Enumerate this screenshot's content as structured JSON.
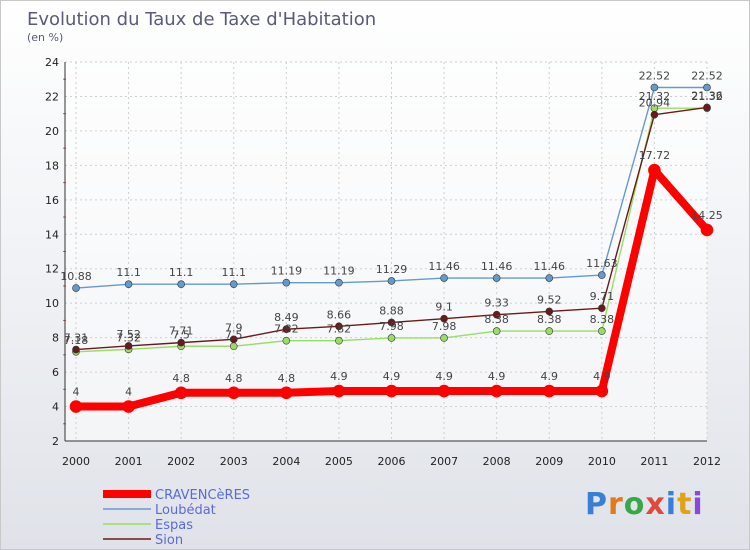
{
  "chart_data": {
    "type": "line",
    "title": "Evolution du Taux de Taxe d'Habitation",
    "subtitle": "(en %)",
    "x": [
      "2000",
      "2001",
      "2002",
      "2003",
      "2004",
      "2005",
      "2006",
      "2007",
      "2008",
      "2009",
      "2010",
      "2011",
      "2012"
    ],
    "ylim": [
      2,
      24
    ],
    "yticks": [
      2,
      4,
      6,
      8,
      10,
      12,
      14,
      16,
      18,
      20,
      22,
      24
    ],
    "grid": true,
    "legend_position": "bottom-left",
    "series": [
      {
        "name": "CRAVENCèRES",
        "color": "#ff0000",
        "values": [
          4,
          4,
          4.8,
          4.8,
          4.8,
          4.9,
          4.9,
          4.9,
          4.9,
          4.9,
          4.9,
          17.72,
          14.25
        ],
        "labels": [
          "4",
          "4",
          "4.8",
          "4.8",
          "4.8",
          "4.9",
          "4.9",
          "4.9",
          "4.9",
          "4.9",
          "4.9",
          "17.72",
          "14.25"
        ]
      },
      {
        "name": "Loubédat",
        "color": "#6699cc",
        "values": [
          10.88,
          11.1,
          11.1,
          11.1,
          11.19,
          11.19,
          11.29,
          11.46,
          11.46,
          11.46,
          11.63,
          22.52,
          22.52
        ],
        "labels": [
          "10.88",
          "11.1",
          "11.1",
          "11.1",
          "11.19",
          "11.19",
          "11.29",
          "11.46",
          "11.46",
          "11.46",
          "11.63",
          "22.52",
          "22.52"
        ]
      },
      {
        "name": "Espas",
        "color": "#99dd66",
        "values": [
          7.18,
          7.32,
          7.5,
          7.5,
          7.82,
          7.82,
          7.98,
          7.98,
          8.38,
          8.38,
          8.38,
          21.32,
          21.32
        ],
        "labels": [
          "7.18",
          "7.32",
          "7.5",
          "7.5",
          "7.82",
          "7.82",
          "7.98",
          "7.98",
          "8.38",
          "8.38",
          "8.38",
          "21.32",
          "21.32"
        ]
      },
      {
        "name": "Sion",
        "color": "#6b1a1a",
        "values": [
          7.31,
          7.52,
          7.71,
          7.9,
          8.49,
          8.66,
          8.88,
          9.1,
          9.33,
          9.52,
          9.71,
          20.94,
          21.36
        ],
        "labels": [
          "7.31",
          "7.52",
          "7.71",
          "7.9",
          "8.49",
          "8.66",
          "8.88",
          "9.1",
          "9.33",
          "9.52",
          "9.71",
          "20.94",
          "21.36"
        ]
      }
    ]
  },
  "logo": {
    "letters": [
      "P",
      "r",
      "o",
      "x",
      "i",
      "t",
      "i"
    ],
    "colors": [
      "#3a7fd6",
      "#e07b1a",
      "#3aa64a",
      "#e04a3a",
      "#3a7fd6",
      "#e0a21a",
      "#8a4ad6"
    ]
  }
}
